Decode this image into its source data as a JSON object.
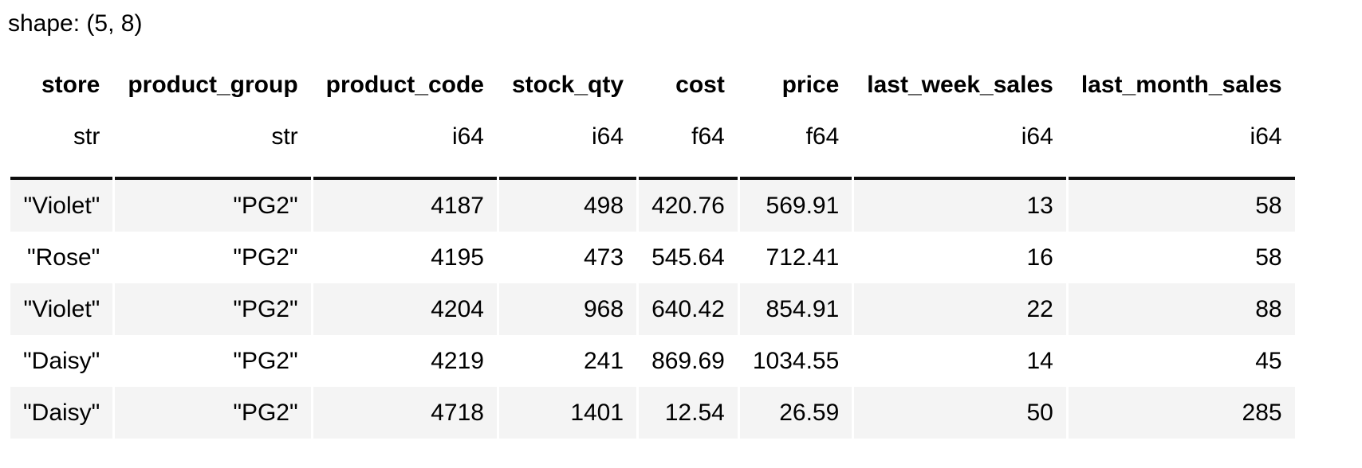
{
  "title": "shape: (5, 8)",
  "colors": {
    "background": "#ffffff",
    "text": "#000000",
    "stripe": "#f4f4f4",
    "header_border": "#0d0d0d"
  },
  "table": {
    "columns": [
      {
        "name": "store",
        "dtype": "str"
      },
      {
        "name": "product_group",
        "dtype": "str"
      },
      {
        "name": "product_code",
        "dtype": "i64"
      },
      {
        "name": "stock_qty",
        "dtype": "i64"
      },
      {
        "name": "cost",
        "dtype": "f64"
      },
      {
        "name": "price",
        "dtype": "f64"
      },
      {
        "name": "last_week_sales",
        "dtype": "i64"
      },
      {
        "name": "last_month_sales",
        "dtype": "i64"
      }
    ],
    "rows": [
      [
        "\"Violet\"",
        "\"PG2\"",
        "4187",
        "498",
        "420.76",
        "569.91",
        "13",
        "58"
      ],
      [
        "\"Rose\"",
        "\"PG2\"",
        "4195",
        "473",
        "545.64",
        "712.41",
        "16",
        "58"
      ],
      [
        "\"Violet\"",
        "\"PG2\"",
        "4204",
        "968",
        "640.42",
        "854.91",
        "22",
        "88"
      ],
      [
        "\"Daisy\"",
        "\"PG2\"",
        "4219",
        "241",
        "869.69",
        "1034.55",
        "14",
        "45"
      ],
      [
        "\"Daisy\"",
        "\"PG2\"",
        "4718",
        "1401",
        "12.54",
        "26.59",
        "50",
        "285"
      ]
    ]
  }
}
